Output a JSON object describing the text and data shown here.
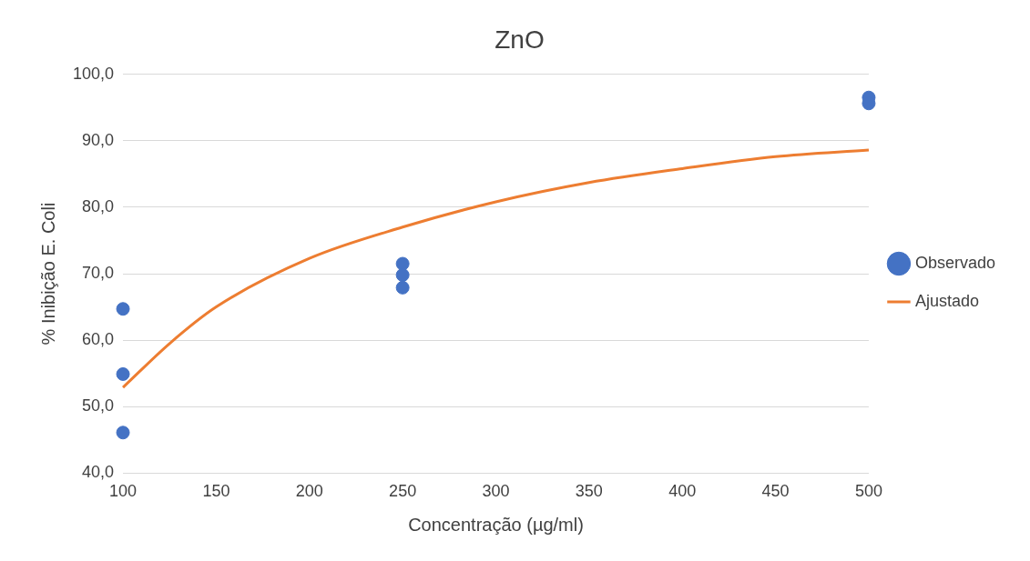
{
  "chart_data": {
    "type": "scatter",
    "title": "ZnO",
    "xlabel": "Concentração (µg/ml)",
    "ylabel": "% Inibição E. Coli",
    "xlim": [
      100,
      500
    ],
    "xticks": [
      100,
      150,
      200,
      250,
      300,
      350,
      400,
      450,
      500
    ],
    "ylim": [
      40,
      100
    ],
    "yticks": [
      {
        "value": 40,
        "label": "40,0"
      },
      {
        "value": 50,
        "label": "50,0"
      },
      {
        "value": 60,
        "label": "60,0"
      },
      {
        "value": 70,
        "label": "70,0"
      },
      {
        "value": 80,
        "label": "80,0"
      },
      {
        "value": 90,
        "label": "90,0"
      },
      {
        "value": 100,
        "label": "100,0"
      }
    ],
    "grid": "y",
    "legend": "right",
    "series": [
      {
        "name": "Observado",
        "type": "scatter",
        "marker": "circle",
        "color": "#4472c4",
        "x": [
          100,
          100,
          100,
          250,
          250,
          250,
          500,
          500
        ],
        "values": [
          64.7,
          54.9,
          46.1,
          71.5,
          69.8,
          67.9,
          96.5,
          95.6
        ]
      },
      {
        "name": "Ajustado",
        "type": "line",
        "marker": "none",
        "line_style": "solid",
        "color": "#ed7d31",
        "x": [
          100,
          125,
          150,
          200,
          250,
          300,
          350,
          400,
          450,
          500
        ],
        "values": [
          52.9,
          59.5,
          65.0,
          72.3,
          77.0,
          80.8,
          83.7,
          85.8,
          87.6,
          88.6
        ]
      }
    ]
  }
}
